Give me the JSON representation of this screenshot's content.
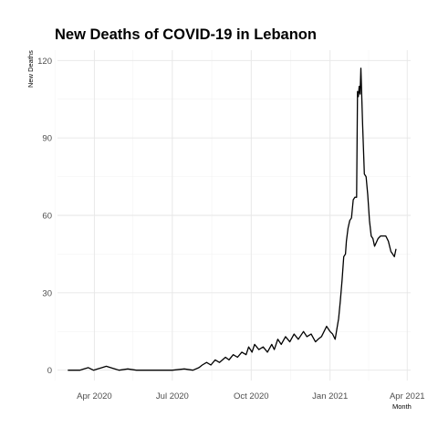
{
  "chart_data": {
    "type": "line",
    "title": "New Deaths of COVID-19 in Lebanon",
    "xlabel": "Month",
    "ylabel": "New Deaths",
    "x_axis_type": "date",
    "xlim": [
      "2020-02-18",
      "2021-04-05"
    ],
    "ylim": [
      -4,
      124
    ],
    "grid": true,
    "legend": "none",
    "line_color": "#000000",
    "x_ticks": [
      {
        "date": "2020-04-01",
        "label": "Apr 2020"
      },
      {
        "date": "2020-07-01",
        "label": "Jul 2020"
      },
      {
        "date": "2020-10-01",
        "label": "Oct 2020"
      },
      {
        "date": "2021-01-01",
        "label": "Jan 2021"
      },
      {
        "date": "2021-04-01",
        "label": "Apr 2021"
      }
    ],
    "x_minor_ticks": [
      "2020-02-15",
      "2020-05-16",
      "2020-08-16",
      "2020-11-16",
      "2021-02-15"
    ],
    "y_ticks": [
      0,
      30,
      60,
      90,
      120
    ],
    "y_minor_ticks": [
      15,
      45,
      75,
      105
    ],
    "series": [
      {
        "x": [
          "2020-03-01",
          "2020-03-10",
          "2020-03-15",
          "2020-03-20",
          "2020-03-25",
          "2020-03-31",
          "2020-04-05",
          "2020-04-10",
          "2020-04-15",
          "2020-04-20",
          "2020-04-30",
          "2020-05-10",
          "2020-05-20",
          "2020-06-01",
          "2020-06-15",
          "2020-06-25",
          "2020-07-01",
          "2020-07-15",
          "2020-07-25",
          "2020-08-01",
          "2020-08-05",
          "2020-08-10",
          "2020-08-15",
          "2020-08-20",
          "2020-08-25",
          "2020-09-01",
          "2020-09-05",
          "2020-09-10",
          "2020-09-15",
          "2020-09-20",
          "2020-09-25",
          "2020-09-28",
          "2020-10-02",
          "2020-10-05",
          "2020-10-10",
          "2020-10-15",
          "2020-10-20",
          "2020-10-25",
          "2020-10-28",
          "2020-11-01",
          "2020-11-05",
          "2020-11-10",
          "2020-11-15",
          "2020-11-20",
          "2020-11-25",
          "2020-12-01",
          "2020-12-05",
          "2020-12-10",
          "2020-12-15",
          "2020-12-18",
          "2020-12-22",
          "2020-12-25",
          "2020-12-28",
          "2021-01-01",
          "2021-01-04",
          "2021-01-07",
          "2021-01-09",
          "2021-01-11",
          "2021-01-13",
          "2021-01-15",
          "2021-01-17",
          "2021-01-19",
          "2021-01-20",
          "2021-01-22",
          "2021-01-24",
          "2021-01-26",
          "2021-01-28",
          "2021-01-30",
          "2021-02-01",
          "2021-02-02",
          "2021-02-03",
          "2021-02-04",
          "2021-02-05",
          "2021-02-06",
          "2021-02-08",
          "2021-02-10",
          "2021-02-12",
          "2021-02-14",
          "2021-02-16",
          "2021-02-18",
          "2021-02-20",
          "2021-02-22",
          "2021-02-26",
          "2021-03-01",
          "2021-03-04",
          "2021-03-07",
          "2021-03-10",
          "2021-03-13",
          "2021-03-15",
          "2021-03-17",
          "2021-03-19"
        ],
        "values": [
          0,
          0,
          0,
          0.5,
          1,
          0,
          0.5,
          1,
          1.5,
          1,
          0,
          0.5,
          0,
          0,
          0,
          0,
          0,
          0.5,
          0,
          1,
          2,
          3,
          2,
          4,
          3,
          5,
          4,
          6,
          5,
          7,
          6,
          9,
          7,
          10,
          8,
          9,
          7,
          10,
          8,
          12,
          10,
          13,
          11,
          14,
          12,
          15,
          13,
          14,
          11,
          12,
          13,
          15,
          17,
          15,
          14,
          12,
          16,
          20,
          27,
          35,
          44,
          45,
          50,
          55,
          58,
          59,
          66,
          67,
          67,
          108,
          106,
          110,
          107,
          117,
          95,
          76,
          75,
          68,
          58,
          52,
          51,
          48,
          51,
          52,
          52,
          52,
          50,
          46,
          45,
          44,
          47
        ]
      }
    ]
  }
}
